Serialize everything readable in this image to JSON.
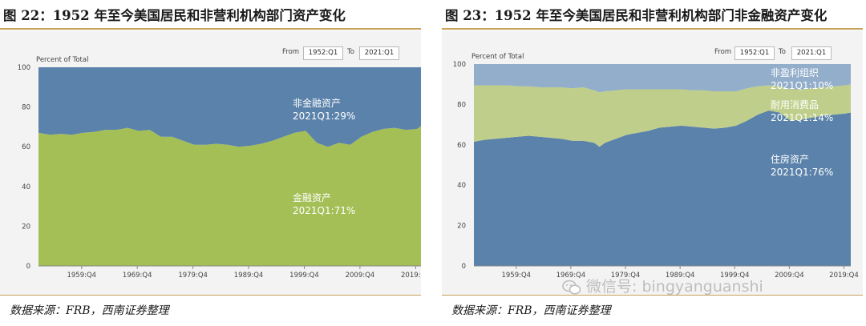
{
  "left": {
    "title": "图 22：1952 年至今美国居民和非营利机构部门资产变化",
    "from_label": "From",
    "from_value": "1952:Q1",
    "to_label": "To",
    "to_value": "2021:Q1",
    "source": "数据来源：FRB，西南证券整理"
  },
  "right": {
    "title": "图 23：1952 年至今美国居民和非营利机构部门非金融资产变化",
    "from_label": "From",
    "from_value": "1952:Q1",
    "to_label": "To",
    "to_value": "2021:Q1",
    "source": "数据来源：FRB，西南证券整理",
    "watermark": "微信号: bingyanguanshi"
  },
  "colors": {
    "blue": "#5b82aa",
    "green": "#a4bf56",
    "light_green": "#bfcf8b",
    "light_blue": "#93aecb",
    "plot_bg": "#f3f3f3",
    "accent_rule": "#c8a25a"
  },
  "chart_data": [
    {
      "type": "area",
      "stacked": true,
      "percent": true,
      "ylabel": "Percent of Total",
      "ylim": [
        0,
        100
      ],
      "yticks": [
        0,
        20,
        40,
        60,
        80,
        100
      ],
      "xlim": [
        1952.0,
        2021.0
      ],
      "xtick_labels": [
        "1959:Q4",
        "1969:Q4",
        "1979:Q4",
        "1989:Q4",
        "1999:Q4",
        "2009:Q4",
        "2019:Q4"
      ],
      "xtick_values": [
        1959.75,
        1969.75,
        1979.75,
        1989.75,
        1999.75,
        2009.75,
        2019.75
      ],
      "x": [
        1952,
        1954,
        1956,
        1958,
        1960,
        1962,
        1964,
        1966,
        1968,
        1970,
        1972,
        1974,
        1976,
        1978,
        1980,
        1982,
        1984,
        1986,
        1988,
        1990,
        1992,
        1994,
        1996,
        1998,
        2000,
        2002,
        2004,
        2006,
        2008,
        2010,
        2012,
        2014,
        2016,
        2018,
        2020,
        2021
      ],
      "series": [
        {
          "name": "金融资产",
          "color": "#a4bf56",
          "values": [
            67,
            66,
            66.5,
            66,
            67,
            67.5,
            68.5,
            68.5,
            69.5,
            68,
            68.5,
            65,
            65,
            63,
            61,
            61,
            61.5,
            61,
            60,
            60.5,
            61.5,
            63,
            65,
            67,
            68,
            62,
            60,
            62,
            61,
            65,
            67.5,
            69,
            69.5,
            68.5,
            69,
            71
          ],
          "annotation": [
            "金融资产",
            "2021Q1:71%"
          ]
        },
        {
          "name": "非金融资产",
          "color": "#5b82aa",
          "values": [
            33,
            34,
            33.5,
            34,
            33,
            32.5,
            31.5,
            31.5,
            30.5,
            32,
            31.5,
            35,
            35,
            37,
            39,
            39,
            38.5,
            39,
            40,
            39.5,
            38.5,
            37,
            35,
            33,
            32,
            38,
            40,
            38,
            39,
            35,
            32.5,
            31,
            30.5,
            31.5,
            31,
            29
          ],
          "annotation": [
            "非金融资产",
            "2021Q1:29%"
          ]
        }
      ]
    },
    {
      "type": "area",
      "stacked": true,
      "percent": true,
      "ylabel": "Percent of Total",
      "ylim": [
        0,
        100
      ],
      "yticks": [
        0,
        20,
        40,
        60,
        80,
        100
      ],
      "xlim": [
        1952.0,
        2021.0
      ],
      "xtick_labels": [
        "1959:Q4",
        "1969:Q4",
        "1979:Q4",
        "1989:Q4",
        "1999:Q4",
        "2009:Q4",
        "2019:Q4"
      ],
      "xtick_values": [
        1959.75,
        1969.75,
        1979.75,
        1989.75,
        1999.75,
        2009.75,
        2019.75
      ],
      "x": [
        1952,
        1954,
        1956,
        1958,
        1960,
        1962,
        1964,
        1966,
        1968,
        1970,
        1972,
        1974,
        1975,
        1976,
        1978,
        1980,
        1982,
        1984,
        1986,
        1988,
        1990,
        1992,
        1994,
        1996,
        1998,
        2000,
        2002,
        2004,
        2006,
        2008,
        2010,
        2012,
        2014,
        2016,
        2018,
        2020,
        2021
      ],
      "series": [
        {
          "name": "住房资产",
          "color": "#5b82aa",
          "values": [
            61.5,
            62.5,
            63,
            63.5,
            64,
            64.5,
            64,
            63.5,
            63,
            62,
            62,
            61,
            59,
            61,
            63,
            65,
            66,
            67,
            68.5,
            69,
            69.5,
            69,
            68.5,
            68,
            68.5,
            69.5,
            72,
            75,
            77,
            76,
            72,
            72.5,
            73.5,
            74.5,
            75,
            75.5,
            76
          ],
          "annotation": [
            "住房资产",
            "2021Q1:76%"
          ]
        },
        {
          "name": "耐用消费品",
          "color": "#bfcf8b",
          "values": [
            28,
            27,
            26.5,
            26,
            25,
            24.5,
            24.5,
            25,
            25.5,
            26,
            26.5,
            26,
            27,
            25.5,
            24,
            22.5,
            21.5,
            20.5,
            19,
            18.5,
            18,
            18,
            18.5,
            18.5,
            18,
            17,
            16,
            14,
            12.5,
            13,
            15.5,
            15,
            14.5,
            14,
            14,
            14,
            14
          ],
          "annotation": [
            "耐用消费品",
            "2021Q1:14%"
          ]
        },
        {
          "name": "非盈利组织",
          "color": "#93aecb",
          "values": [
            10.5,
            10.5,
            10.5,
            10.5,
            11,
            11,
            11.5,
            11.5,
            11.5,
            12,
            11.5,
            13,
            14,
            13.5,
            13,
            12.5,
            12.5,
            12.5,
            12.5,
            12.5,
            12.5,
            13,
            13,
            13.5,
            13.5,
            13.5,
            12,
            11,
            10.5,
            11,
            12.5,
            12.5,
            12,
            11.5,
            11,
            10.5,
            10
          ],
          "annotation": [
            "非盈利组织",
            "2021Q1:10%"
          ]
        }
      ]
    }
  ]
}
